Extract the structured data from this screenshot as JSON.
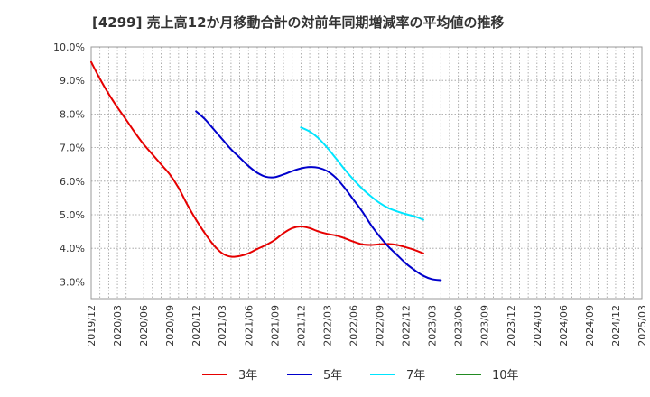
{
  "chart_data": {
    "type": "line",
    "title": "[4299]  売上高12か月移動合計の対前年同期増減率の平均値の推移",
    "xlabel": "",
    "ylabel": "",
    "ylim": [
      2.5,
      10.0
    ],
    "y_ticks": [
      3.0,
      4.0,
      5.0,
      6.0,
      7.0,
      8.0,
      9.0,
      10.0
    ],
    "y_tick_labels": [
      "3.0%",
      "4.0%",
      "5.0%",
      "6.0%",
      "7.0%",
      "8.0%",
      "9.0%",
      "10.0%"
    ],
    "x_tick_labels": [
      "2019/12",
      "2020/03",
      "2020/06",
      "2020/09",
      "2020/12",
      "2021/03",
      "2021/06",
      "2021/09",
      "2021/12",
      "2022/03",
      "2022/06",
      "2022/09",
      "2022/12",
      "2023/03",
      "2023/06",
      "2023/09",
      "2023/12",
      "2024/03",
      "2024/06",
      "2024/09",
      "2024/12",
      "2025/03"
    ],
    "series": [
      {
        "name": "3年",
        "color": "#e60000",
        "start_index": 0,
        "values": [
          9.55,
          9.05,
          8.6,
          8.2,
          7.83,
          7.45,
          7.1,
          6.8,
          6.5,
          6.2,
          5.8,
          5.3,
          4.85,
          4.45,
          4.1,
          3.85,
          3.75,
          3.77,
          3.85,
          3.98,
          4.1,
          4.25,
          4.45,
          4.6,
          4.65,
          4.6,
          4.5,
          4.43,
          4.38,
          4.3,
          4.2,
          4.12,
          4.1,
          4.12,
          4.13,
          4.1,
          4.03,
          3.95,
          3.85
        ]
      },
      {
        "name": "5年",
        "color": "#0000cc",
        "start_index": 12,
        "values": [
          8.08,
          7.85,
          7.55,
          7.25,
          6.95,
          6.7,
          6.45,
          6.25,
          6.13,
          6.12,
          6.2,
          6.3,
          6.38,
          6.42,
          6.4,
          6.3,
          6.1,
          5.8,
          5.45,
          5.1,
          4.7,
          4.35,
          4.05,
          3.8,
          3.55,
          3.35,
          3.18,
          3.08,
          3.05
        ]
      },
      {
        "name": "7年",
        "color": "#00e5ff",
        "start_index": 24,
        "values": [
          7.6,
          7.48,
          7.28,
          7.0,
          6.68,
          6.35,
          6.05,
          5.78,
          5.55,
          5.35,
          5.2,
          5.1,
          5.02,
          4.95,
          4.85
        ]
      },
      {
        "name": "10年",
        "color": "#228b22",
        "start_index": 0,
        "values": []
      }
    ],
    "legend_position": "bottom",
    "grid": true
  }
}
